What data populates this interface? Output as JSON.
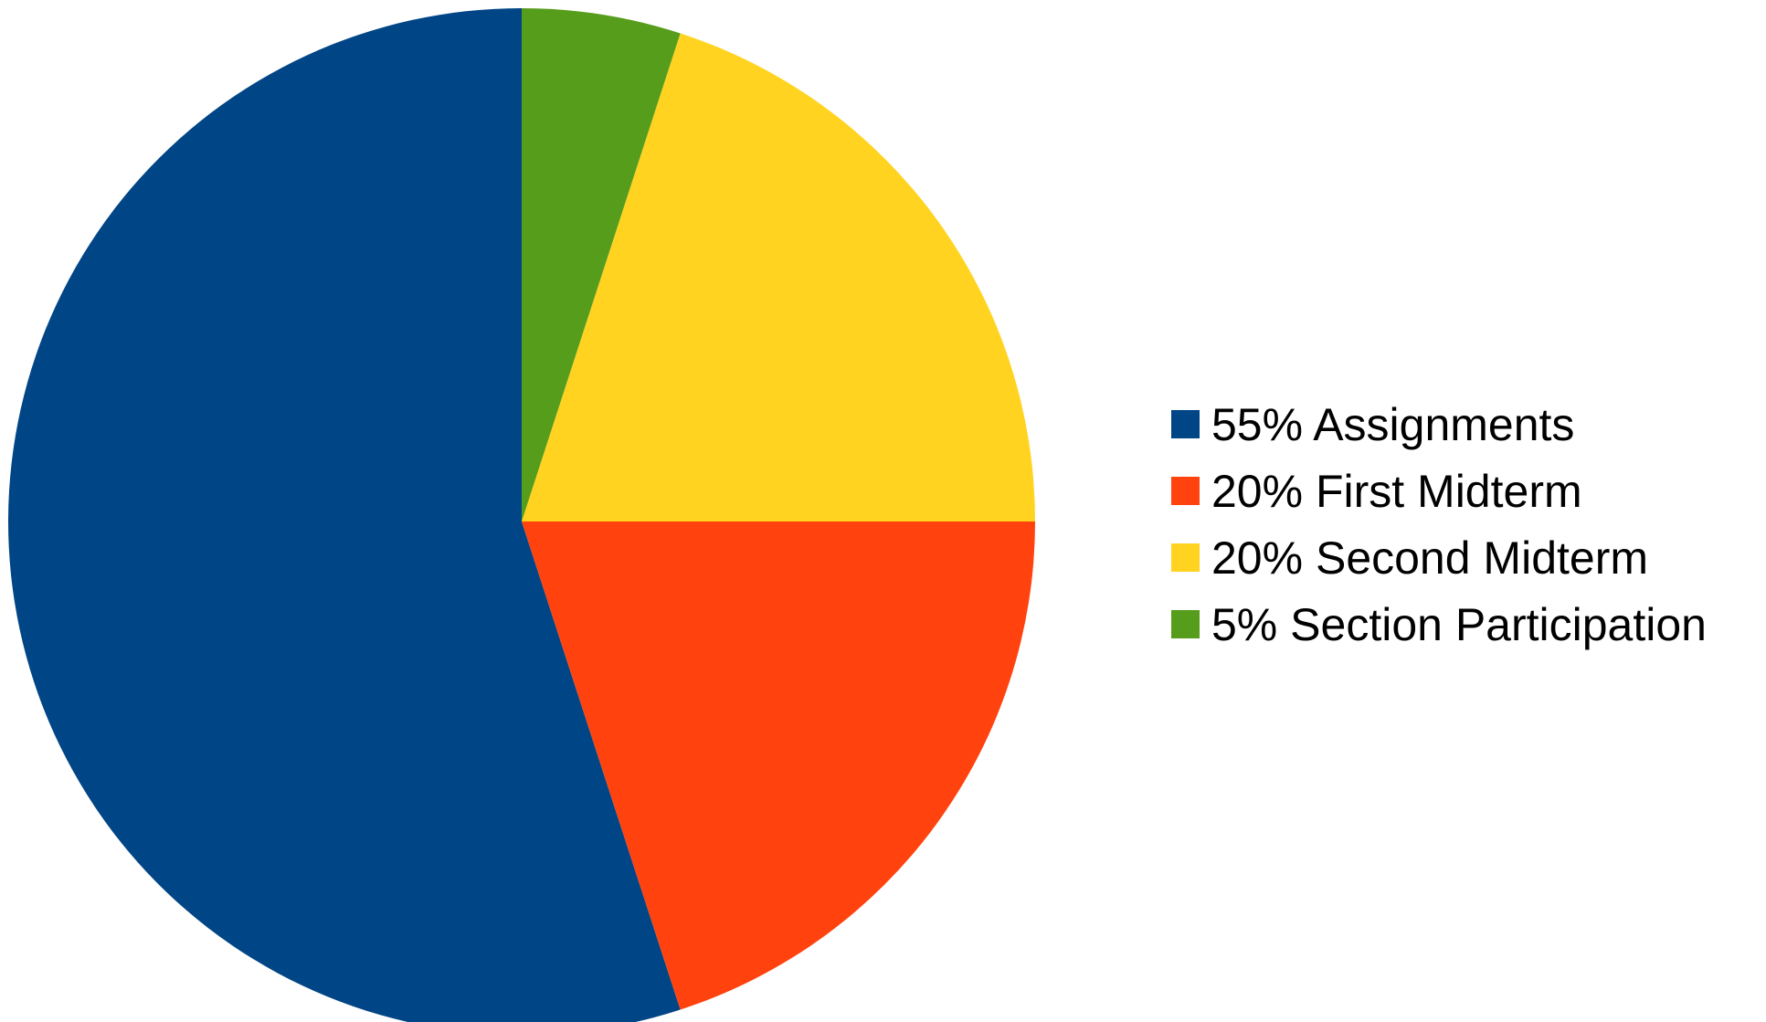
{
  "chart_data": {
    "type": "pie",
    "categories": [
      "Assignments",
      "First Midterm",
      "Second Midterm",
      "Section Participation"
    ],
    "values": [
      55,
      20,
      20,
      5
    ],
    "legend_labels": [
      "55% Assignments",
      "20% First Midterm",
      "20% Second Midterm",
      "5% Section Participation"
    ],
    "colors": [
      "#004586",
      "#ff420e",
      "#ffd320",
      "#579d1c"
    ],
    "start_angle": "12 o'clock",
    "direction": "counter-clockwise",
    "legend_position": "right"
  }
}
